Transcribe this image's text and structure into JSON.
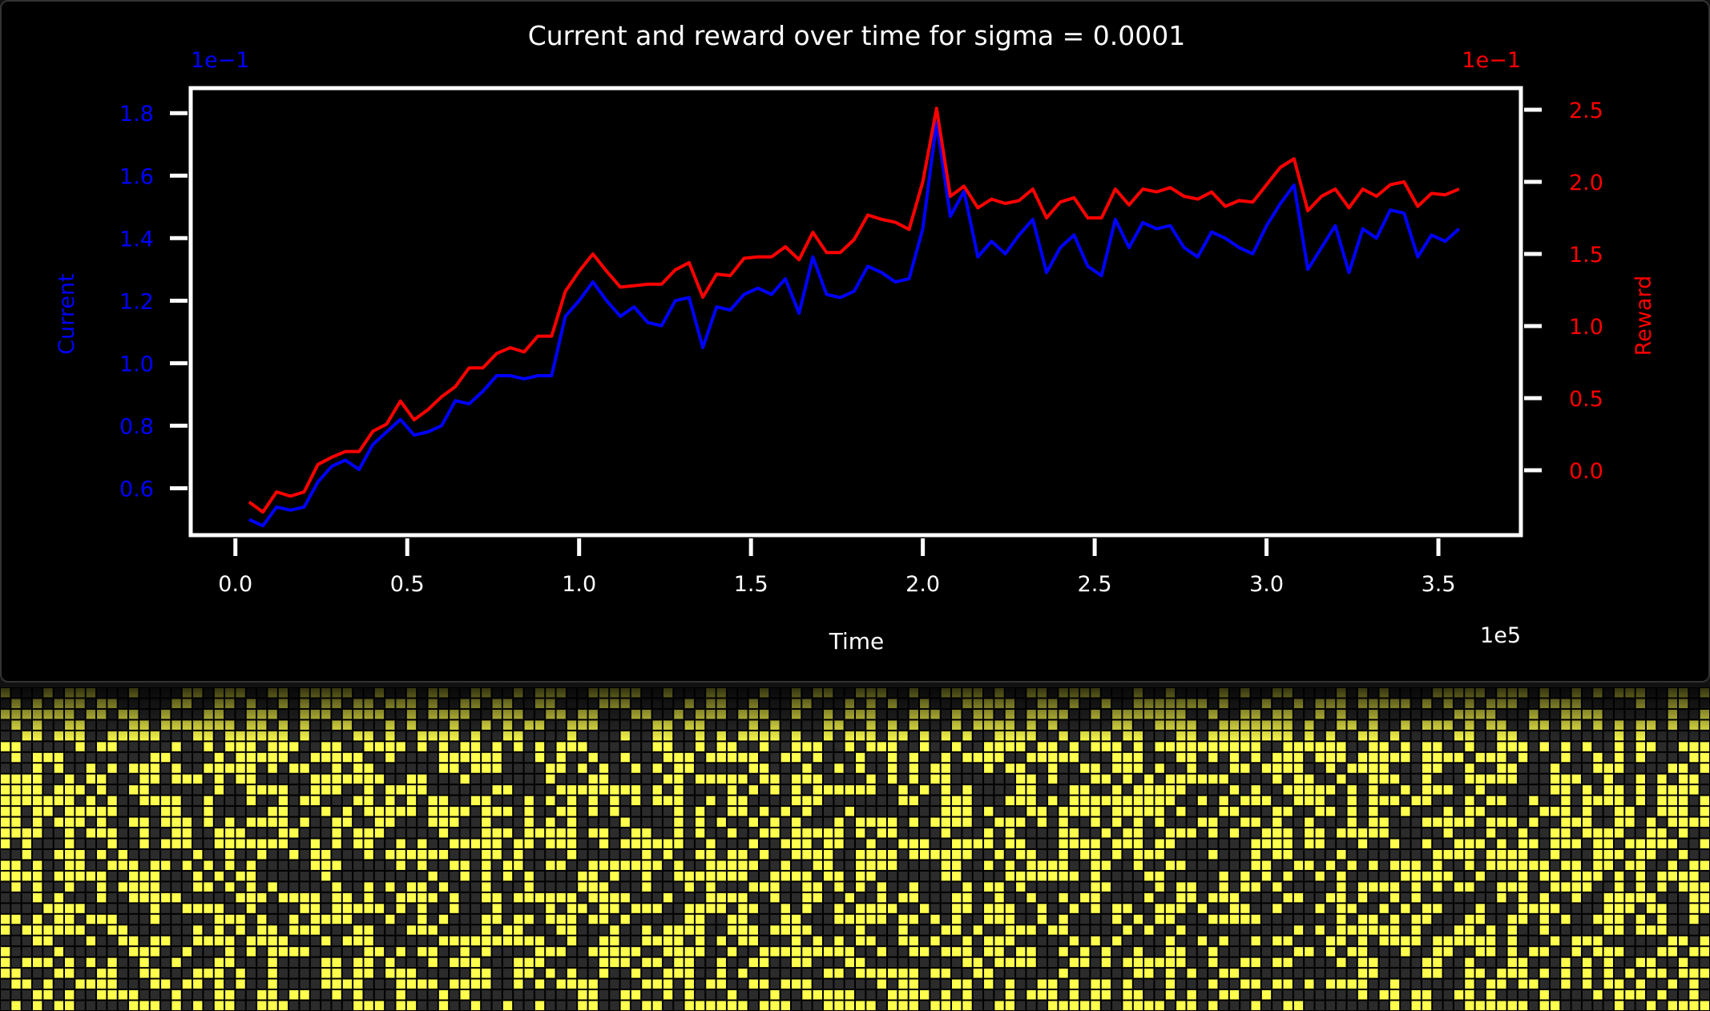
{
  "colors": {
    "background": "#000000",
    "axes": "#ffffff",
    "current": "#0000ff",
    "reward": "#ff0000",
    "cell_on": "#ffff4d",
    "cell_off": "#2b2b2b"
  },
  "chart_data": {
    "type": "line",
    "title": "Current and reward over time for sigma = 0.0001",
    "xlabel": "Time",
    "x_offset_text": "1e5",
    "xlim": [
      -0.13,
      3.74
    ],
    "x_ticks": [
      0.0,
      0.5,
      1.0,
      1.5,
      2.0,
      2.5,
      3.0,
      3.5
    ],
    "x_tick_labels": [
      "0.0",
      "0.5",
      "1.0",
      "1.5",
      "2.0",
      "2.5",
      "3.0",
      "3.5"
    ],
    "left_axis": {
      "label": "Current",
      "offset_text": "1e−1",
      "ylim": [
        0.45,
        1.88
      ],
      "ticks": [
        0.6,
        0.8,
        1.0,
        1.2,
        1.4,
        1.6,
        1.8
      ],
      "tick_labels": [
        "0.6",
        "0.8",
        "1.0",
        "1.2",
        "1.4",
        "1.6",
        "1.8"
      ]
    },
    "right_axis": {
      "label": "Reward",
      "offset_text": "1e−1",
      "ylim": [
        -0.45,
        2.65
      ],
      "ticks": [
        0.0,
        0.5,
        1.0,
        1.5,
        2.0,
        2.5
      ],
      "tick_labels": [
        "0.0",
        "0.5",
        "1.0",
        "1.5",
        "2.0",
        "2.5"
      ]
    },
    "grid": false,
    "x": [
      0.04,
      0.08,
      0.12,
      0.16,
      0.2,
      0.24,
      0.28,
      0.32,
      0.36,
      0.4,
      0.44,
      0.48,
      0.52,
      0.56,
      0.6,
      0.64,
      0.68,
      0.72,
      0.76,
      0.8,
      0.84,
      0.88,
      0.92,
      0.96,
      1.0,
      1.04,
      1.08,
      1.12,
      1.16,
      1.2,
      1.24,
      1.28,
      1.32,
      1.36,
      1.4,
      1.44,
      1.48,
      1.52,
      1.56,
      1.6,
      1.64,
      1.68,
      1.72,
      1.76,
      1.8,
      1.84,
      1.88,
      1.92,
      1.96,
      2.0,
      2.04,
      2.08,
      2.12,
      2.16,
      2.2,
      2.24,
      2.28,
      2.32,
      2.36,
      2.4,
      2.44,
      2.48,
      2.52,
      2.56,
      2.6,
      2.64,
      2.68,
      2.72,
      2.76,
      2.8,
      2.84,
      2.88,
      2.92,
      2.96,
      3.0,
      3.04,
      3.08,
      3.12,
      3.16,
      3.2,
      3.24,
      3.28,
      3.32,
      3.36,
      3.4,
      3.44,
      3.48,
      3.52,
      3.56
    ],
    "series": [
      {
        "name": "Current",
        "axis": "left",
        "values": [
          0.5,
          0.48,
          0.54,
          0.53,
          0.54,
          0.62,
          0.67,
          0.69,
          0.66,
          0.74,
          0.78,
          0.82,
          0.77,
          0.78,
          0.8,
          0.88,
          0.87,
          0.91,
          0.96,
          0.96,
          0.95,
          0.96,
          0.96,
          1.15,
          1.2,
          1.26,
          1.2,
          1.15,
          1.18,
          1.13,
          1.12,
          1.2,
          1.21,
          1.05,
          1.18,
          1.17,
          1.22,
          1.24,
          1.22,
          1.27,
          1.16,
          1.34,
          1.22,
          1.21,
          1.23,
          1.31,
          1.29,
          1.26,
          1.27,
          1.43,
          1.77,
          1.47,
          1.55,
          1.34,
          1.39,
          1.35,
          1.41,
          1.46,
          1.29,
          1.37,
          1.41,
          1.31,
          1.28,
          1.46,
          1.37,
          1.45,
          1.43,
          1.44,
          1.37,
          1.34,
          1.42,
          1.4,
          1.37,
          1.35,
          1.44,
          1.51,
          1.57,
          1.3,
          1.37,
          1.44,
          1.29,
          1.43,
          1.4,
          1.49,
          1.48,
          1.34,
          1.41,
          1.39,
          1.43
        ]
      },
      {
        "name": "Reward",
        "axis": "right",
        "values": [
          -0.22,
          -0.29,
          -0.15,
          -0.18,
          -0.15,
          0.04,
          0.09,
          0.13,
          0.13,
          0.27,
          0.32,
          0.48,
          0.35,
          0.42,
          0.51,
          0.58,
          0.71,
          0.71,
          0.81,
          0.85,
          0.82,
          0.93,
          0.93,
          1.24,
          1.38,
          1.5,
          1.38,
          1.27,
          1.28,
          1.29,
          1.29,
          1.39,
          1.44,
          1.2,
          1.36,
          1.35,
          1.47,
          1.48,
          1.48,
          1.55,
          1.46,
          1.65,
          1.51,
          1.51,
          1.6,
          1.77,
          1.74,
          1.72,
          1.67,
          2.0,
          2.51,
          1.9,
          1.97,
          1.82,
          1.88,
          1.85,
          1.87,
          1.95,
          1.75,
          1.86,
          1.89,
          1.75,
          1.75,
          1.95,
          1.84,
          1.95,
          1.93,
          1.96,
          1.9,
          1.88,
          1.93,
          1.83,
          1.87,
          1.86,
          1.98,
          2.1,
          2.16,
          1.8,
          1.9,
          1.95,
          1.82,
          1.95,
          1.9,
          1.98,
          2.0,
          1.83,
          1.92,
          1.91,
          1.95
        ]
      }
    ]
  },
  "grid_panel": {
    "type": "binary-grid",
    "rows": 30,
    "cols": 160,
    "seed": 7,
    "fill_ratio": 0.5
  }
}
